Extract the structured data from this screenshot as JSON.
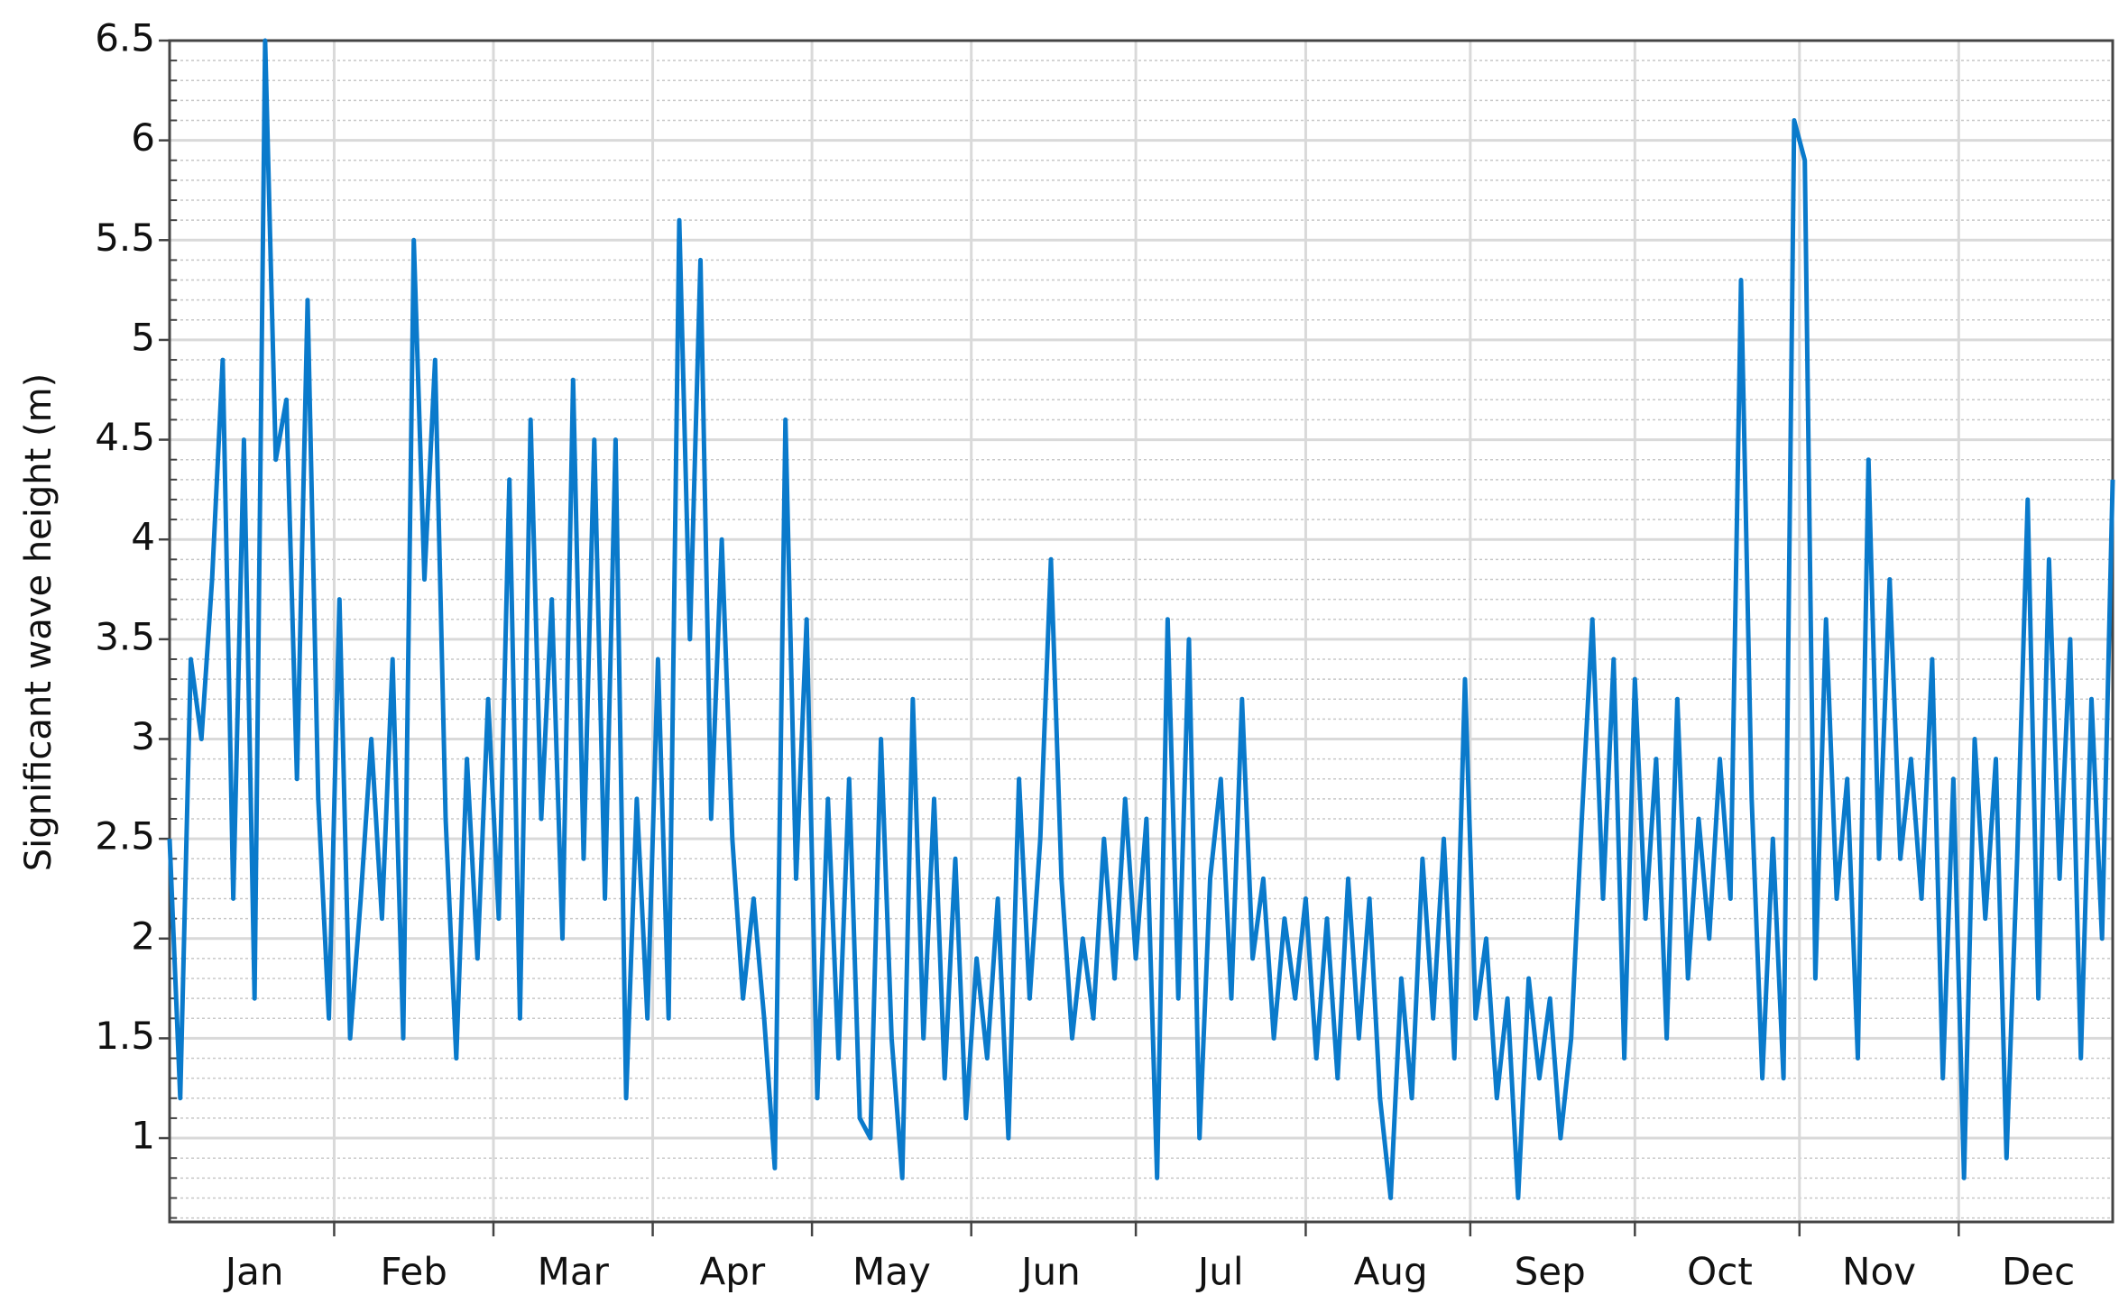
{
  "chart_data": {
    "type": "line",
    "y_label": "Significant wave height (m)",
    "categories": [
      null,
      null,
      null,
      null,
      null,
      null,
      null,
      null,
      "Jan",
      null,
      null,
      null,
      null,
      null,
      null,
      null,
      null,
      null,
      null,
      null,
      null,
      null,
      null,
      "Feb",
      null,
      null,
      null,
      null,
      null,
      null,
      null,
      null,
      null,
      null,
      null,
      null,
      null,
      null,
      "Mar",
      null,
      null,
      null,
      null,
      null,
      null,
      null,
      null,
      null,
      null,
      null,
      null,
      null,
      null,
      "Apr",
      null,
      null,
      null,
      null,
      null,
      null,
      null,
      null,
      null,
      null,
      null,
      null,
      null,
      null,
      "May",
      null,
      null,
      null,
      null,
      null,
      null,
      null,
      null,
      null,
      null,
      null,
      null,
      null,
      null,
      "Jun",
      null,
      null,
      null,
      null,
      null,
      null,
      null,
      null,
      null,
      null,
      null,
      null,
      null,
      null,
      null,
      "Jul",
      null,
      null,
      null,
      null,
      null,
      null,
      null,
      null,
      null,
      null,
      null,
      null,
      null,
      null,
      null,
      "Aug",
      null,
      null,
      null,
      null,
      null,
      null,
      null,
      null,
      null,
      null,
      null,
      null,
      null,
      null,
      "Sep",
      null,
      null,
      null,
      null,
      null,
      null,
      null,
      null,
      null,
      null,
      null,
      null,
      null,
      null,
      null,
      "Oct",
      null,
      null,
      null,
      null,
      null,
      null,
      null,
      null,
      null,
      null,
      null,
      null,
      null,
      null,
      "Nov",
      null,
      null,
      null,
      null,
      null,
      null,
      null,
      null,
      null,
      null,
      null,
      null,
      null,
      null,
      "Dec",
      null,
      null,
      null,
      null,
      null,
      null,
      null
    ],
    "series": [
      {
        "color": "#0a7acb",
        "values": [
          2.5,
          1.2,
          3.4,
          3.0,
          3.8,
          4.9,
          2.2,
          4.5,
          1.7,
          6.5,
          4.4,
          4.7,
          2.8,
          5.2,
          2.7,
          1.6,
          3.7,
          1.5,
          2.2,
          3.0,
          2.1,
          3.4,
          1.5,
          5.5,
          3.8,
          4.9,
          2.6,
          1.4,
          2.9,
          1.9,
          3.2,
          2.1,
          4.3,
          1.6,
          4.6,
          2.6,
          3.7,
          2.0,
          4.8,
          2.4,
          4.5,
          2.2,
          4.5,
          1.2,
          2.7,
          1.6,
          3.4,
          1.6,
          5.6,
          3.5,
          5.4,
          2.6,
          4.0,
          2.5,
          1.7,
          2.2,
          1.6,
          0.85,
          4.6,
          2.3,
          3.6,
          1.2,
          2.7,
          1.4,
          2.8,
          1.1,
          1.0,
          3.0,
          1.5,
          0.8,
          3.2,
          1.5,
          2.7,
          1.3,
          2.4,
          1.1,
          1.9,
          1.4,
          2.2,
          1.0,
          2.8,
          1.7,
          2.5,
          3.9,
          2.3,
          1.5,
          2.0,
          1.6,
          2.5,
          1.8,
          2.7,
          1.9,
          2.6,
          0.8,
          3.6,
          1.7,
          3.5,
          1.0,
          2.3,
          2.8,
          1.7,
          3.2,
          1.9,
          2.3,
          1.5,
          2.1,
          1.7,
          2.2,
          1.4,
          2.1,
          1.3,
          2.3,
          1.5,
          2.2,
          1.2,
          0.7,
          1.8,
          1.2,
          2.4,
          1.6,
          2.5,
          1.4,
          3.3,
          1.6,
          2.0,
          1.2,
          1.7,
          0.7,
          1.8,
          1.3,
          1.7,
          1.0,
          1.5,
          2.6,
          3.6,
          2.2,
          3.4,
          1.4,
          3.3,
          2.1,
          2.9,
          1.5,
          3.2,
          1.8,
          2.6,
          2.0,
          2.9,
          2.2,
          5.3,
          2.7,
          1.3,
          2.5,
          1.3,
          6.1,
          5.9,
          1.8,
          3.6,
          2.2,
          2.8,
          1.4,
          4.4,
          2.4,
          3.8,
          2.4,
          2.9,
          2.2,
          3.4,
          1.3,
          2.8,
          0.8,
          3.0,
          2.1,
          2.9,
          0.9,
          2.4,
          4.2,
          1.7,
          3.9,
          2.3,
          3.5,
          1.4,
          3.2,
          2.0,
          4.3
        ]
      }
    ],
    "ylim": [
      0.58,
      6.5
    ],
    "yticks": [
      1,
      1.5,
      2,
      2.5,
      3,
      3.5,
      4,
      4.5,
      5,
      5.5,
      6,
      6.5
    ],
    "grid": true
  }
}
